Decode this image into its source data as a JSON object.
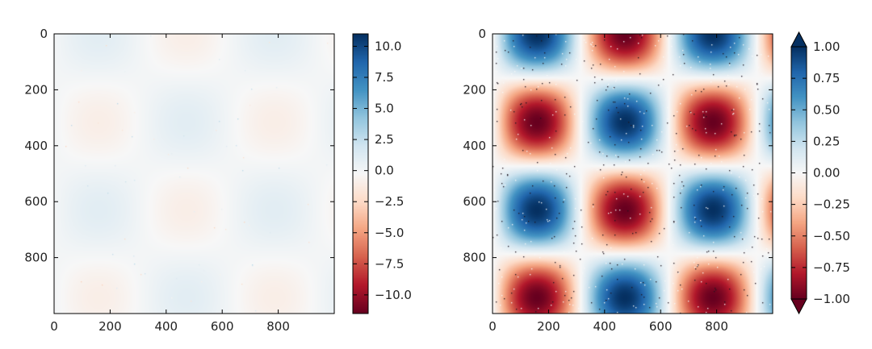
{
  "chart_data": [
    {
      "type": "heatmap",
      "title": "",
      "xlabel": "",
      "ylabel": "",
      "colormap": "RdBu",
      "x_range": [
        0,
        1000
      ],
      "y_range": [
        0,
        1000
      ],
      "y_inverted": true,
      "x_ticks": [
        "0",
        "200",
        "400",
        "600",
        "800"
      ],
      "y_ticks": [
        "0",
        "200",
        "400",
        "600",
        "800"
      ],
      "field": "sin(x/100) * cos(y/100), sparse noise speckles",
      "colorbar": {
        "vmin": -11.5,
        "vmax": 11.0,
        "ticks": [
          10.0,
          7.5,
          5.0,
          2.5,
          0.0,
          -2.5,
          -5.0,
          -7.5,
          -10.0
        ],
        "tick_labels": [
          "10.0",
          "7.5",
          "5.0",
          "2.5",
          "0.0",
          "−2.5",
          "−5.0",
          "−7.5",
          "−10.0"
        ],
        "extend": "neither"
      },
      "grid": false
    },
    {
      "type": "heatmap",
      "title": "",
      "xlabel": "",
      "ylabel": "",
      "colormap": "RdBu",
      "x_range": [
        0,
        1000
      ],
      "y_range": [
        0,
        1000
      ],
      "y_inverted": true,
      "x_ticks": [
        "0",
        "200",
        "400",
        "600",
        "800"
      ],
      "y_ticks": [
        "0",
        "200",
        "400",
        "600",
        "800"
      ],
      "field": "sin(x/100) * cos(y/100), speckle noise clipped to [-1, 1]",
      "colorbar": {
        "vmin": -1.0,
        "vmax": 1.0,
        "ticks": [
          1.0,
          0.75,
          0.5,
          0.25,
          0.0,
          -0.25,
          -0.5,
          -0.75,
          -1.0
        ],
        "tick_labels": [
          "1.00",
          "0.75",
          "0.50",
          "0.25",
          "0.00",
          "−0.25",
          "−0.50",
          "−0.75",
          "−1.00"
        ],
        "extend": "both"
      },
      "grid": false
    }
  ]
}
